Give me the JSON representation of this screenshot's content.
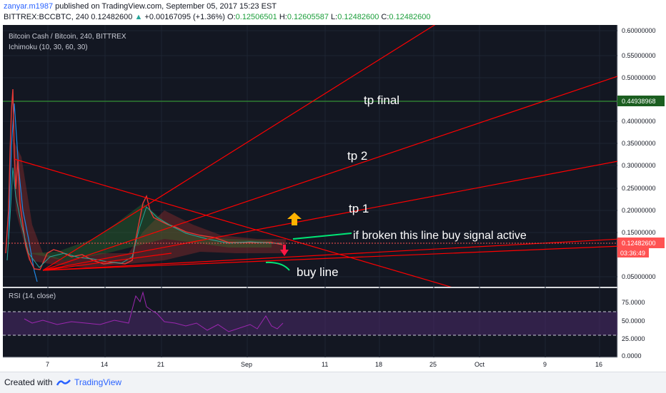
{
  "header": {
    "author": "zanyar.m1987",
    "published": "published on TradingView.com, September 05, 2017 15:23 EST",
    "symbol": "BITTREX:BCCBTC, 240",
    "last": "0.12482600",
    "change": "+0.00167095 (+1.36%)",
    "o_label": "O:",
    "o": "0.12506501",
    "h_label": "H:",
    "h": "0.12605587",
    "l_label": "L:",
    "l": "0.12482600",
    "c_label": "C:",
    "c": "0.12482600"
  },
  "pane": {
    "title": "Bitcoin Cash / Bitcoin, 240, BITTREX",
    "indicator": "Ichimoku (10, 30, 60, 30)",
    "rsi_title": "RSI (14, close)"
  },
  "annotations": {
    "tp_final": "tp final",
    "tp2": "tp 2",
    "tp1": "tp 1",
    "broken": "if broken this line buy signal active",
    "buy_line": "buy line"
  },
  "price_axis": {
    "labels": [
      "0.60000000",
      "0.55000000",
      "0.50000000",
      "0.40000000",
      "0.35000000",
      "0.30000000",
      "0.25000000",
      "0.20000000",
      "0.15000000",
      "0.05000000"
    ],
    "horizontal_level": "0.44938968",
    "current_price": "0.12482600",
    "countdown": "03:36:49"
  },
  "rsi_axis": {
    "labels": [
      "75.0000",
      "50.0000",
      "25.0000",
      "0.0000"
    ]
  },
  "time_axis": {
    "labels": [
      "7",
      "14",
      "21",
      "Sep",
      "11",
      "18",
      "25",
      "Oct",
      "9",
      "16"
    ]
  },
  "footer": {
    "created": "Created with",
    "brand": "TradingView"
  },
  "colors": {
    "annotation_lines": "#ff0000",
    "green_level": "#1b5e20",
    "rsi": "#9c27b0",
    "background": "#131722"
  }
}
